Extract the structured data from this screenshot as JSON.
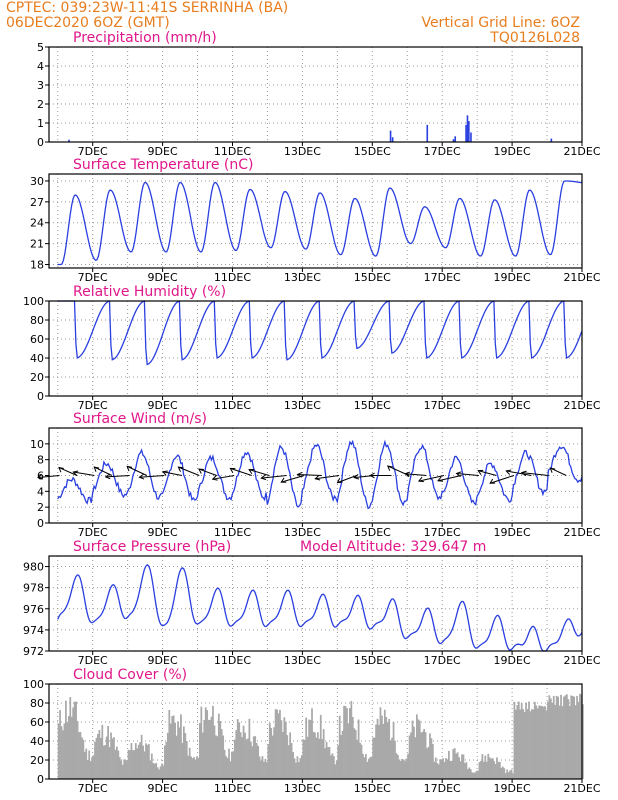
{
  "header": {
    "left_line1": "CPTEC:   039:23W-11:41S   SERRINHA (BA)",
    "left_line2": "06DEC2020 6OZ (GMT)",
    "right_line1": "Vertical Grid Line: 6OZ",
    "right_line2": "TQ0126L028"
  },
  "colors": {
    "header": "#e87d1e",
    "title": "#e0178a",
    "series": "#2a3fe0",
    "cloud": "#a9a9a9",
    "wind_arrow": "#000000"
  },
  "chart_data": [
    {
      "id": "precip",
      "type": "bar",
      "title": "Precipitation (mm/h)",
      "x_tick_labels": [
        "7DEC",
        "9DEC",
        "11DEC",
        "13DEC",
        "15DEC",
        "17DEC",
        "19DEC",
        "21DEC"
      ],
      "ylim": [
        0,
        5
      ],
      "yticks": [
        0,
        1,
        2,
        3,
        4,
        5
      ],
      "events": [
        {
          "t": 0.3,
          "v": 0.12
        },
        {
          "t": 9.5,
          "v": 0.6
        },
        {
          "t": 9.56,
          "v": 0.25
        },
        {
          "t": 10.55,
          "v": 0.9
        },
        {
          "t": 11.3,
          "v": 0.15
        },
        {
          "t": 11.35,
          "v": 0.3
        },
        {
          "t": 11.66,
          "v": 0.9
        },
        {
          "t": 11.7,
          "v": 1.4
        },
        {
          "t": 11.74,
          "v": 1.1
        },
        {
          "t": 11.8,
          "v": 0.5
        },
        {
          "t": 14.1,
          "v": 0.18
        }
      ]
    },
    {
      "id": "temp",
      "type": "line",
      "title": "Surface Temperature (nC)",
      "x_tick_labels": [
        "7DEC",
        "9DEC",
        "11DEC",
        "13DEC",
        "15DEC",
        "17DEC",
        "19DEC",
        "21DEC"
      ],
      "ylim": [
        17.5,
        31
      ],
      "yticks": [
        18,
        21,
        24,
        27,
        30
      ],
      "daily_min": [
        18.0,
        18.6,
        19.8,
        19.8,
        19.8,
        20.0,
        20.4,
        20.2,
        19.4,
        19.2,
        21.0,
        20.4,
        19.2,
        19.2,
        19.4
      ],
      "daily_max": [
        28.0,
        28.7,
        29.8,
        29.8,
        29.8,
        28.8,
        28.5,
        28.3,
        27.5,
        29.0,
        26.3,
        27.5,
        27.3,
        28.7,
        30.0,
        29.5
      ]
    },
    {
      "id": "rh",
      "type": "line",
      "title": "Relative Humidity (%)",
      "x_tick_labels": [
        "7DEC",
        "9DEC",
        "11DEC",
        "13DEC",
        "15DEC",
        "17DEC",
        "19DEC",
        "21DEC"
      ],
      "ylim": [
        0,
        100
      ],
      "yticks": [
        0,
        20,
        40,
        60,
        80,
        100
      ],
      "daily_max": [
        100,
        100,
        100,
        100,
        100,
        100,
        100,
        100,
        100,
        100,
        100,
        100,
        100,
        100,
        100,
        100
      ],
      "daily_min": [
        40,
        38,
        33,
        38,
        40,
        40,
        38,
        40,
        50,
        45,
        40,
        40,
        40,
        40,
        40,
        40
      ]
    },
    {
      "id": "wind",
      "type": "line",
      "title": "Surface Wind (m/s)",
      "x_tick_labels": [
        "7DEC",
        "9DEC",
        "11DEC",
        "13DEC",
        "15DEC",
        "17DEC",
        "19DEC",
        "21DEC"
      ],
      "ylim": [
        0,
        12
      ],
      "yticks": [
        0,
        2,
        4,
        6,
        8,
        10
      ],
      "daily_low": [
        2.8,
        3.5,
        3.2,
        2.8,
        3.2,
        3.3,
        2.0,
        3.2,
        2.2,
        2.5,
        3.2,
        2.5,
        3.0,
        4.0,
        5.5
      ],
      "daily_high": [
        5.5,
        7.5,
        8.8,
        8.5,
        8.2,
        9.0,
        9.5,
        9.8,
        10.2,
        10.0,
        9.7,
        8.2,
        7.5,
        8.8,
        9.8
      ],
      "arrow_baseline": 6.0
    },
    {
      "id": "pres",
      "type": "line",
      "title": "Surface Pressure (hPa)",
      "annotation": "Model Altitude: 329.647 m",
      "x_tick_labels": [
        "7DEC",
        "9DEC",
        "11DEC",
        "13DEC",
        "15DEC",
        "17DEC",
        "19DEC",
        "21DEC"
      ],
      "ylim": [
        972,
        981
      ],
      "yticks": [
        972,
        974,
        976,
        978,
        980
      ],
      "daily_max": [
        978.9,
        977.9,
        979.9,
        979.6,
        977.6,
        977.4,
        977.4,
        977.0,
        976.9,
        976.6,
        975.7,
        976.4,
        975.0,
        973.9,
        974.5,
        973.0
      ],
      "daily_min": [
        975.0,
        974.4,
        975.0,
        974.0,
        974.2,
        974.2,
        974.2,
        974.2,
        974.2,
        974.0,
        973.0,
        972.6,
        972.0,
        972.0,
        972.0
      ]
    },
    {
      "id": "cloud",
      "type": "bar",
      "title": "Cloud Cover (%)",
      "x_tick_labels": [
        "7DEC",
        "9DEC",
        "11DEC",
        "13DEC",
        "15DEC",
        "17DEC",
        "19DEC",
        "21DEC"
      ],
      "ylim": [
        0,
        100
      ],
      "yticks": [
        0,
        20,
        40,
        60,
        80,
        100
      ],
      "daily_peak": [
        95,
        62,
        50,
        78,
        92,
        72,
        80,
        78,
        85,
        80,
        70,
        35,
        30,
        82,
        90
      ]
    }
  ]
}
